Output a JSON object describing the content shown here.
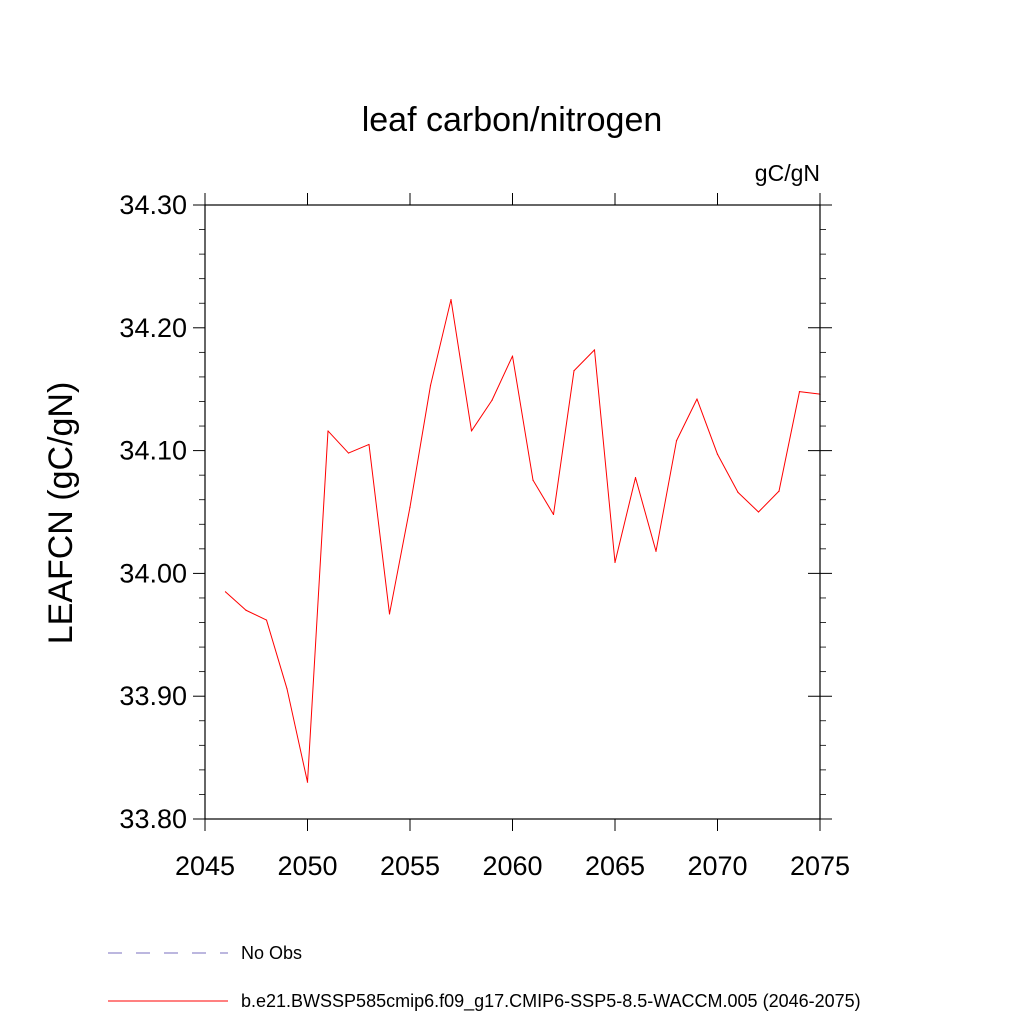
{
  "chart_data": {
    "type": "line",
    "title": "leaf carbon/nitrogen",
    "units_label": "gC/gN",
    "ylabel": "LEAFCN  (gC/gN)",
    "xlabel": "",
    "xlim": [
      2045,
      2075
    ],
    "ylim": [
      33.8,
      34.3
    ],
    "x_tick_values": [
      2045,
      2050,
      2055,
      2060,
      2065,
      2070,
      2075
    ],
    "x_tick_labels": [
      "2045",
      "2050",
      "2055",
      "2060",
      "2065",
      "2070",
      "2075"
    ],
    "y_tick_values": [
      33.8,
      33.9,
      34.0,
      34.1,
      34.2,
      34.3
    ],
    "y_tick_labels": [
      "33.80",
      "33.90",
      "34.00",
      "34.10",
      "34.20",
      "34.30"
    ],
    "grid": false,
    "legend_position": "bottom",
    "legend": [
      {
        "label": "No Obs",
        "color": "#7a6fbf",
        "style": "dashed"
      },
      {
        "label": "b.e21.BWSSP585cmip6.f09_g17.CMIP6-SSP5-8.5-WACCM.005 (2046-2075)",
        "color": "#ff0000",
        "style": "solid"
      }
    ],
    "series": [
      {
        "color": "#ff0000",
        "x": [
          2046,
          2047,
          2048,
          2049,
          2050,
          2051,
          2052,
          2053,
          2054,
          2055,
          2056,
          2057,
          2058,
          2059,
          2060,
          2061,
          2062,
          2063,
          2064,
          2065,
          2066,
          2067,
          2068,
          2069,
          2070,
          2071,
          2072,
          2073,
          2074,
          2075
        ],
        "values": [
          33.985,
          33.97,
          33.962,
          33.906,
          33.83,
          34.116,
          34.098,
          34.105,
          33.967,
          34.054,
          34.153,
          34.223,
          34.116,
          34.141,
          34.177,
          34.076,
          34.048,
          34.165,
          34.182,
          34.009,
          34.078,
          34.018,
          34.108,
          34.142,
          34.097,
          34.066,
          34.05,
          34.067,
          34.148,
          34.146
        ]
      }
    ]
  }
}
